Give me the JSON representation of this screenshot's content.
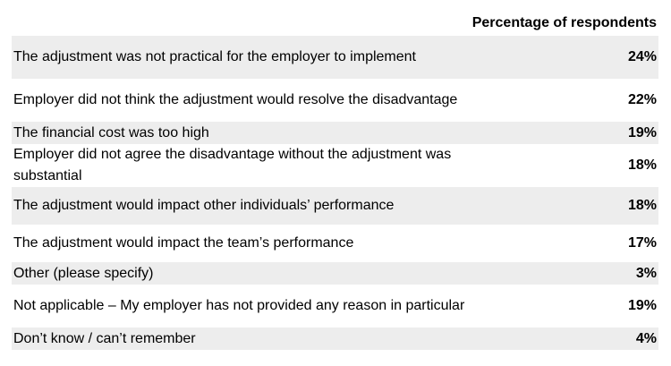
{
  "header": {
    "column_label": "Percentage of respondents"
  },
  "rows": [
    {
      "label": "The adjustment was not practical for the employer to implement",
      "value": "24%"
    },
    {
      "label": "Employer did not think the adjustment would resolve the disadvantage",
      "value": "22%"
    },
    {
      "label": "The financial cost was too high",
      "value": "19%"
    },
    {
      "label": "Employer did not agree the disadvantage without the adjustment was substantial",
      "value": "18%"
    },
    {
      "label": "The adjustment would impact other individuals’ performance",
      "value": "18%"
    },
    {
      "label": "The adjustment would impact the team’s performance",
      "value": "17%"
    },
    {
      "label": "Other (please specify)",
      "value": "3%"
    },
    {
      "label": "Not applicable – My employer has not provided any reason in particular",
      "value": "19%"
    },
    {
      "label": "Don’t know / can’t remember",
      "value": "4%"
    }
  ],
  "chart_data": {
    "type": "table",
    "columns": [
      "",
      "Percentage of respondents"
    ],
    "categories": [
      "The adjustment was not practical for the employer to implement",
      "Employer did not think the adjustment would resolve the disadvantage",
      "The financial cost was too high",
      "Employer did not agree the disadvantage without the adjustment was substantial",
      "The adjustment would impact other individuals’ performance",
      "The adjustment would impact the team’s performance",
      "Other (please specify)",
      "Not applicable – My employer has not provided any reason in particular",
      "Don’t know / can’t remember"
    ],
    "values": [
      24,
      22,
      19,
      18,
      18,
      17,
      3,
      19,
      4
    ]
  }
}
